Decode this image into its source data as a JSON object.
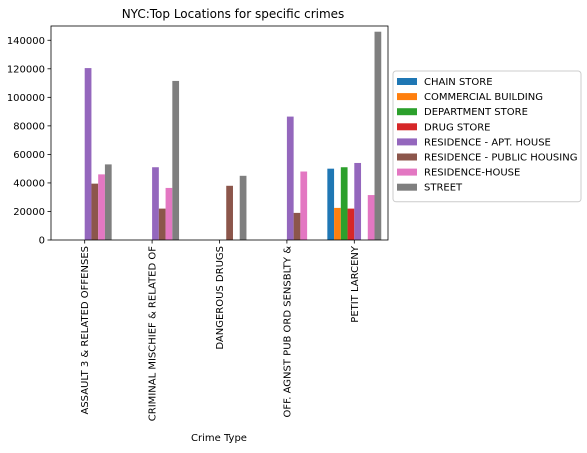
{
  "chart_data": {
    "type": "bar",
    "title": "NYC:Top Locations for specific crimes",
    "xlabel": "Crime Type",
    "ylabel": "",
    "ylim": [
      0,
      150000
    ],
    "yticks": [
      0,
      20000,
      40000,
      60000,
      80000,
      100000,
      120000,
      140000
    ],
    "ytick_labels": [
      "0",
      "20000",
      "40000",
      "60000",
      "80000",
      "100000",
      "120000",
      "140000"
    ],
    "legend_position": "right",
    "categories": [
      "ASSAULT 3 & RELATED OFFENSES",
      "CRIMINAL MISCHIEF & RELATED OF",
      "DANGEROUS DRUGS",
      "OFF. AGNST PUB ORD SENSBLTY &",
      "PETIT LARCENY"
    ],
    "series": [
      {
        "name": "CHAIN STORE",
        "color": "#1f77b4",
        "values": [
          null,
          null,
          null,
          null,
          50000
        ]
      },
      {
        "name": "COMMERCIAL BUILDING",
        "color": "#ff7f0e",
        "values": [
          null,
          null,
          null,
          null,
          22500
        ]
      },
      {
        "name": "DEPARTMENT STORE",
        "color": "#2ca02c",
        "values": [
          null,
          null,
          null,
          null,
          51000
        ]
      },
      {
        "name": "DRUG STORE",
        "color": "#d62728",
        "values": [
          null,
          null,
          null,
          null,
          22000
        ]
      },
      {
        "name": "RESIDENCE - APT. HOUSE",
        "color": "#9467bd",
        "values": [
          120500,
          51000,
          null,
          86500,
          54000
        ]
      },
      {
        "name": "RESIDENCE - PUBLIC HOUSING",
        "color": "#8c564b",
        "values": [
          39500,
          22000,
          38000,
          19000,
          null
        ]
      },
      {
        "name": "RESIDENCE-HOUSE",
        "color": "#e377c2",
        "values": [
          46000,
          36500,
          null,
          48000,
          31500
        ]
      },
      {
        "name": "STREET",
        "color": "#7f7f7f",
        "values": [
          53000,
          111500,
          45000,
          null,
          146000
        ]
      }
    ]
  }
}
